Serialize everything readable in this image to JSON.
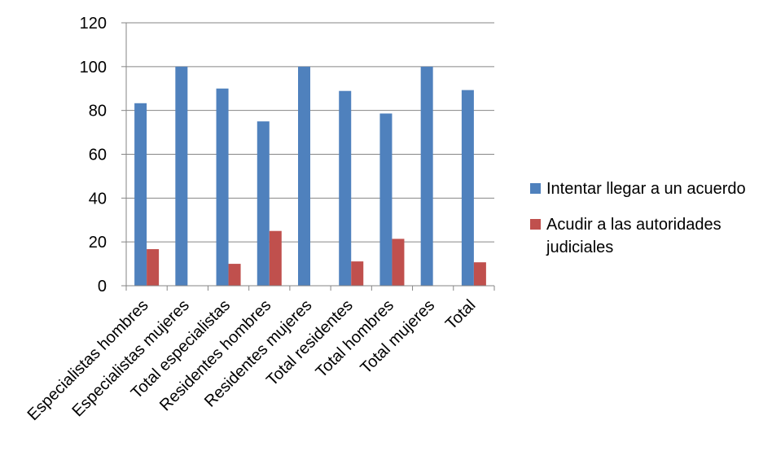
{
  "chart_data": {
    "type": "bar",
    "categories": [
      "Especialistas hombres",
      "Especialistas mujeres",
      "Total especialistas",
      "Residentes hombres",
      "Residentes mujeres",
      "Total residentes",
      "Total hombres",
      "Total mujeres",
      "Total"
    ],
    "series": [
      {
        "name": "Intentar llegar a un acuerdo",
        "color": "#4F81BD",
        "values": [
          83.3,
          100,
          90,
          75,
          100,
          88.9,
          78.6,
          100,
          89.3
        ]
      },
      {
        "name": "Acudir a las autoridades judiciales",
        "color": "#C0504D",
        "values": [
          16.7,
          0,
          10,
          25,
          0,
          11.1,
          21.4,
          0,
          10.7
        ]
      }
    ],
    "ylim": [
      0,
      120
    ],
    "yticks": [
      0,
      20,
      40,
      60,
      80,
      100,
      120
    ],
    "ytick_labels": [
      "0",
      "20",
      "40",
      "60",
      "80",
      "100",
      "120"
    ],
    "grid": true,
    "legend_position": "right",
    "title": "",
    "xlabel": "",
    "ylabel": ""
  }
}
